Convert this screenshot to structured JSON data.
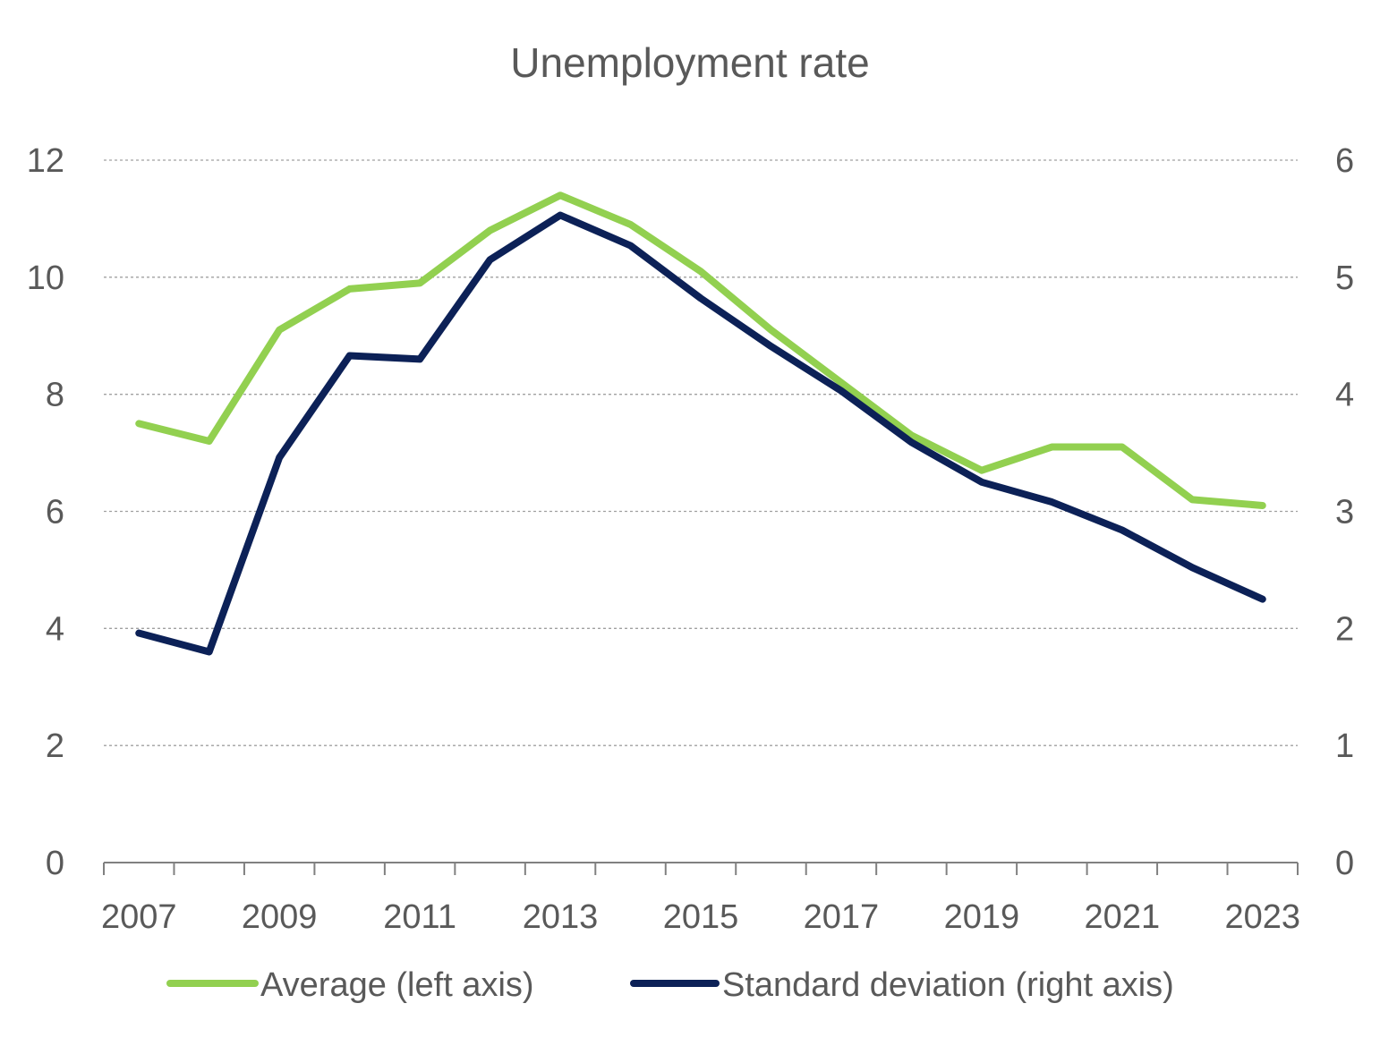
{
  "chart_data": {
    "type": "line",
    "title": "Unemployment rate",
    "x": [
      2007,
      2008,
      2009,
      2010,
      2011,
      2012,
      2013,
      2014,
      2015,
      2016,
      2017,
      2018,
      2019,
      2020,
      2021,
      2022,
      2023
    ],
    "x_tick_labels": [
      "2007",
      "2009",
      "2011",
      "2013",
      "2015",
      "2017",
      "2019",
      "2021",
      "2023"
    ],
    "y_left": {
      "range": [
        0,
        12
      ],
      "ticks": [
        "0",
        "2",
        "4",
        "6",
        "8",
        "10",
        "12"
      ]
    },
    "y_right": {
      "range": [
        0,
        6
      ],
      "ticks": [
        "0",
        "1",
        "2",
        "3",
        "4",
        "5",
        "6"
      ]
    },
    "grid": true,
    "legend_position": "bottom",
    "series": [
      {
        "name": "Average (left axis)",
        "axis": "left",
        "color": "#92D050",
        "values": [
          7.5,
          7.2,
          9.1,
          9.8,
          9.9,
          10.8,
          11.4,
          10.9,
          10.1,
          9.1,
          8.2,
          7.3,
          6.7,
          7.1,
          7.1,
          6.2,
          6.1
        ]
      },
      {
        "name": "Standard deviation (right axis)",
        "axis": "right",
        "color": "#0C2157",
        "values": [
          1.96,
          1.8,
          3.46,
          4.33,
          4.3,
          5.15,
          5.53,
          5.27,
          4.82,
          4.41,
          4.03,
          3.59,
          3.25,
          3.08,
          2.84,
          2.52,
          2.25
        ]
      }
    ]
  }
}
